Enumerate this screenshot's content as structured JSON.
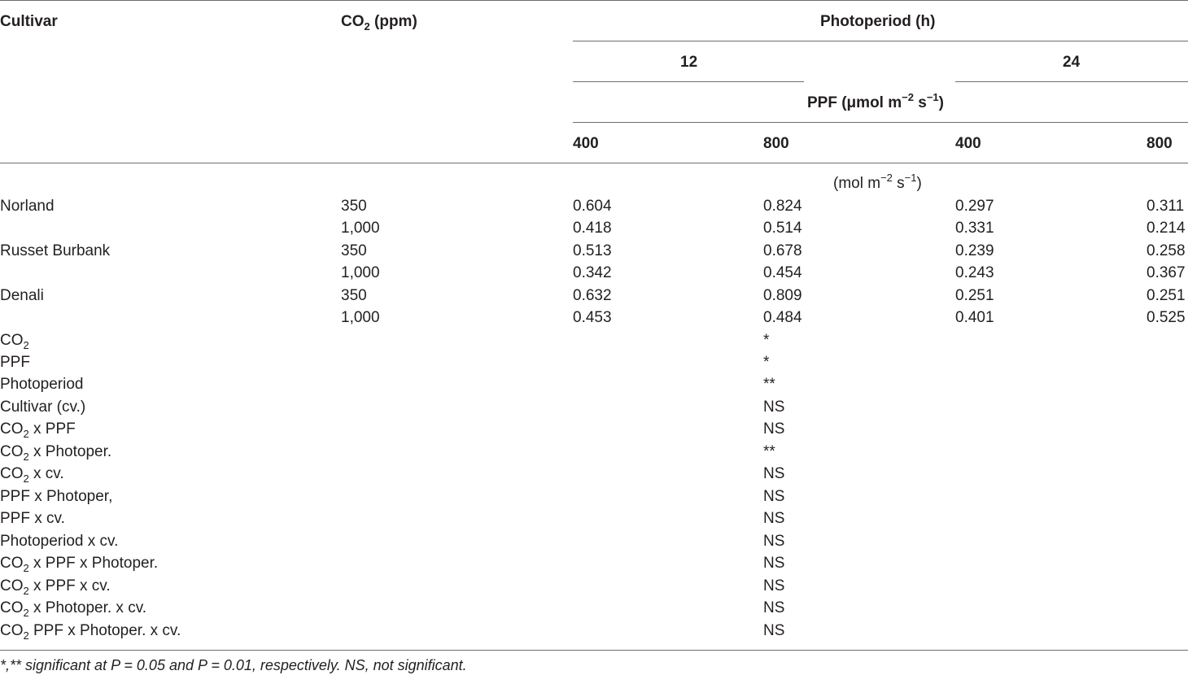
{
  "header": {
    "cultivar": "Cultivar",
    "co2_main": "CO",
    "co2_sub": "2",
    "co2_unit": " (ppm)",
    "photoperiod": "Photoperiod (h)",
    "photo_12": "12",
    "photo_24": "24",
    "ppf_main": "PPF (μmol m",
    "ppf_sup1": "−2",
    "ppf_mid": " s",
    "ppf_sup2": "−1",
    "ppf_end": ")",
    "col_400a": "400",
    "col_800a": "800",
    "col_400b": "400",
    "col_800b": "800"
  },
  "unit": {
    "main": "(mol m",
    "sup": "−2",
    "mid": " s",
    "sup2": "−1",
    "end": ")"
  },
  "rows": [
    {
      "cultivar": "Norland",
      "co2": "350",
      "v": [
        "0.604",
        "0.824",
        "0.297",
        "0.311"
      ]
    },
    {
      "cultivar": "",
      "co2": "1,000",
      "v": [
        "0.418",
        "0.514",
        "0.331",
        "0.214"
      ]
    },
    {
      "cultivar": "Russet Burbank",
      "co2": "350",
      "v": [
        "0.513",
        "0.678",
        "0.239",
        "0.258"
      ]
    },
    {
      "cultivar": "",
      "co2": "1,000",
      "v": [
        "0.342",
        "0.454",
        "0.243",
        "0.367"
      ]
    },
    {
      "cultivar": "Denali",
      "co2": "350",
      "v": [
        "0.632",
        "0.809",
        "0.251",
        "0.251"
      ]
    },
    {
      "cultivar": "",
      "co2": "1,000",
      "v": [
        "0.453",
        "0.484",
        "0.401",
        "0.525"
      ]
    }
  ],
  "anova": [
    {
      "pre": "CO",
      "sub": "2",
      "post": "",
      "sig": "*"
    },
    {
      "pre": "PPF",
      "sub": "",
      "post": "",
      "sig": "*"
    },
    {
      "pre": "Photoperiod",
      "sub": "",
      "post": "",
      "sig": "**"
    },
    {
      "pre": "Cultivar (cv.)",
      "sub": "",
      "post": "",
      "sig": "NS"
    },
    {
      "pre": "CO",
      "sub": "2",
      "post": " x PPF",
      "sig": "NS"
    },
    {
      "pre": "CO",
      "sub": "2",
      "post": " x Photoper.",
      "sig": "**"
    },
    {
      "pre": "CO",
      "sub": "2",
      "post": " x cv.",
      "sig": "NS"
    },
    {
      "pre": "PPF x Photoper,",
      "sub": "",
      "post": "",
      "sig": "NS"
    },
    {
      "pre": "PPF x cv.",
      "sub": "",
      "post": "",
      "sig": "NS"
    },
    {
      "pre": "Photoperiod x cv.",
      "sub": "",
      "post": "",
      "sig": "NS"
    },
    {
      "pre": "CO",
      "sub": "2",
      "post": " x PPF x Photoper.",
      "sig": "NS"
    },
    {
      "pre": "CO",
      "sub": "2",
      "post": " x PPF x cv.",
      "sig": "NS"
    },
    {
      "pre": "CO",
      "sub": "2",
      "post": " x Photoper. x cv.",
      "sig": "NS"
    },
    {
      "pre": "CO",
      "sub": "2",
      "post": " PPF x Photoper. x cv.",
      "sig": "NS"
    }
  ],
  "footnote": "*,** significant at P = 0.05 and P = 0.01, respectively. NS, not significant."
}
